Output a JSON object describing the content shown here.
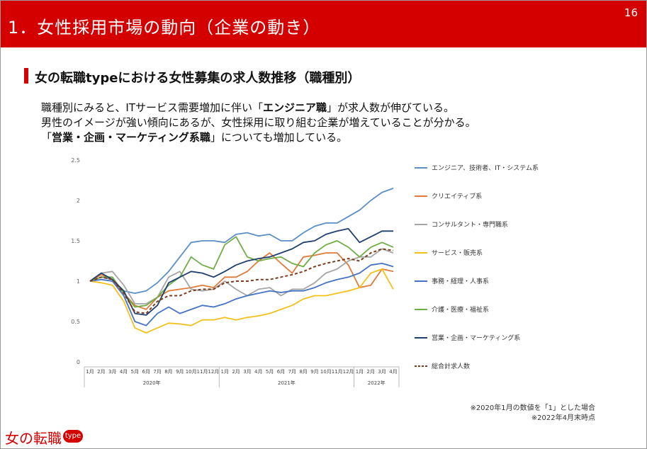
{
  "page": {
    "title": "1．女性採用市場の動向（企業の動き）",
    "page_number": "16"
  },
  "section": {
    "subtitle": "女の転職typeにおける女性募集の求人数推移（職種別）"
  },
  "body": {
    "line1_a": "職種別にみると、ITサービス需要増加に伴い「",
    "line1_b": "エンジニア職",
    "line1_c": "」が求人数が伸びている。",
    "line2": "男性のイメージが強い傾向にあるが、女性採用に取り組む企業が増えていることが分かる。",
    "line3_a": "「",
    "line3_b": "営業・企画・マーケティング系職",
    "line3_c": "」についても増加している。"
  },
  "notes": {
    "note1": "※2020年1月の数値を「1」とした場合",
    "note2": "※2022年4月末時点"
  },
  "logo": {
    "text": "女の転職",
    "badge": "type"
  },
  "chart_data": {
    "type": "line",
    "title": "",
    "xlabel": "",
    "ylabel": "",
    "ylim": [
      0,
      2.5
    ],
    "yticks": [
      "0",
      "0.5",
      "1",
      "1.5",
      "2",
      "2.5"
    ],
    "months": [
      "1月",
      "2月",
      "3月",
      "4月",
      "5月",
      "6月",
      "7月",
      "8月",
      "9月",
      "10月",
      "11月",
      "12月",
      "1月",
      "2月",
      "3月",
      "4月",
      "5月",
      "6月",
      "7月",
      "8月",
      "9月",
      "10月",
      "11月",
      "12月",
      "1月",
      "2月",
      "3月",
      "4月"
    ],
    "years": [
      "2020年",
      "2021年",
      "2022年"
    ],
    "legend_position": "right",
    "series": [
      {
        "name": "エンジニア、技術者、IT・システム系",
        "color": "#5b8fc7",
        "dash": false,
        "values": [
          1.0,
          1.05,
          1.02,
          0.88,
          0.85,
          0.88,
          0.98,
          1.12,
          1.3,
          1.48,
          1.5,
          1.5,
          1.48,
          1.58,
          1.6,
          1.56,
          1.58,
          1.5,
          1.5,
          1.6,
          1.68,
          1.72,
          1.72,
          1.8,
          1.88,
          2.0,
          2.1,
          2.15
        ]
      },
      {
        "name": "クリエイティブ系",
        "color": "#e07b39",
        "dash": false,
        "values": [
          1.0,
          1.08,
          1.02,
          0.85,
          0.7,
          0.65,
          0.8,
          0.88,
          0.9,
          0.92,
          0.95,
          0.92,
          1.05,
          1.05,
          1.12,
          1.25,
          1.35,
          1.22,
          1.1,
          1.3,
          1.32,
          1.35,
          1.35,
          1.2,
          0.92,
          0.95,
          1.15,
          1.12
        ]
      },
      {
        "name": "コンサルタント・専門職系",
        "color": "#a5a5a5",
        "dash": false,
        "values": [
          1.0,
          1.1,
          1.12,
          0.95,
          0.72,
          0.72,
          0.8,
          1.05,
          1.12,
          0.9,
          0.88,
          0.9,
          1.0,
          0.9,
          0.82,
          0.9,
          0.92,
          0.82,
          0.9,
          0.9,
          0.98,
          1.1,
          1.15,
          1.25,
          1.3,
          1.3,
          1.4,
          1.35
        ]
      },
      {
        "name": "サービス・販売系",
        "color": "#f2c21b",
        "dash": false,
        "values": [
          1.0,
          0.98,
          0.95,
          0.75,
          0.42,
          0.36,
          0.42,
          0.48,
          0.47,
          0.45,
          0.52,
          0.52,
          0.55,
          0.52,
          0.55,
          0.57,
          0.6,
          0.65,
          0.7,
          0.78,
          0.82,
          0.82,
          0.85,
          0.88,
          0.92,
          1.1,
          1.15,
          0.9
        ]
      },
      {
        "name": "事務・経理・人事系",
        "color": "#4472c4",
        "dash": false,
        "values": [
          1.0,
          1.02,
          1.0,
          0.82,
          0.5,
          0.45,
          0.6,
          0.68,
          0.6,
          0.65,
          0.7,
          0.68,
          0.72,
          0.78,
          0.82,
          0.85,
          0.88,
          0.86,
          0.88,
          0.88,
          0.92,
          0.98,
          1.02,
          1.05,
          1.1,
          1.2,
          1.22,
          1.18
        ]
      },
      {
        "name": "介護・医療・福祉系",
        "color": "#70ad47",
        "dash": false,
        "values": [
          1.0,
          1.05,
          1.05,
          0.85,
          0.68,
          0.7,
          0.8,
          0.95,
          1.05,
          1.3,
          1.2,
          1.15,
          1.45,
          1.55,
          1.3,
          1.25,
          1.28,
          1.3,
          1.22,
          1.18,
          1.35,
          1.45,
          1.5,
          1.42,
          1.3,
          1.42,
          1.48,
          1.42
        ]
      },
      {
        "name": "営業・企画・マーケティング系",
        "color": "#1f3f6e",
        "dash": false,
        "values": [
          1.0,
          1.1,
          1.02,
          0.88,
          0.6,
          0.58,
          0.7,
          0.98,
          1.05,
          1.12,
          1.1,
          1.05,
          1.12,
          1.2,
          1.25,
          1.28,
          1.3,
          1.35,
          1.4,
          1.48,
          1.5,
          1.58,
          1.62,
          1.65,
          1.48,
          1.55,
          1.62,
          1.62
        ]
      },
      {
        "name": "総合計求人数",
        "color": "#7b3b1c",
        "dash": true,
        "values": [
          1.0,
          1.05,
          1.02,
          0.85,
          0.62,
          0.6,
          0.75,
          0.82,
          0.82,
          0.88,
          0.9,
          0.9,
          0.98,
          1.0,
          1.0,
          1.02,
          1.02,
          1.05,
          1.08,
          1.12,
          1.18,
          1.22,
          1.25,
          1.28,
          1.25,
          1.35,
          1.4,
          1.38
        ]
      }
    ]
  }
}
